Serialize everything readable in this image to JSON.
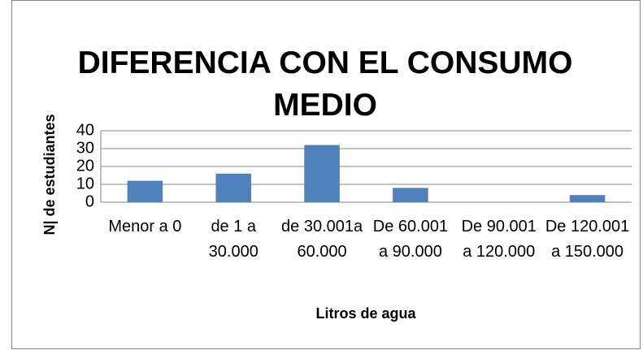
{
  "chart_data": {
    "type": "bar",
    "title": "DIFERENCIA CON EL CONSUMO MEDIO",
    "xlabel": "Litros de agua",
    "ylabel": "N| de estudiantes",
    "categories": [
      "Menor a 0",
      "de 1 a 30.000",
      "de 30.001a 60.000",
      "De 60.001 a 90.000",
      "De 90.001 a 120.000",
      "De 120.001 a 150.000"
    ],
    "values": [
      12,
      16,
      32,
      8,
      0,
      4
    ],
    "color": "#4f81bd",
    "ylim": [
      0,
      40
    ],
    "yticks": [
      0,
      10,
      20,
      30,
      40
    ],
    "grid": true
  }
}
